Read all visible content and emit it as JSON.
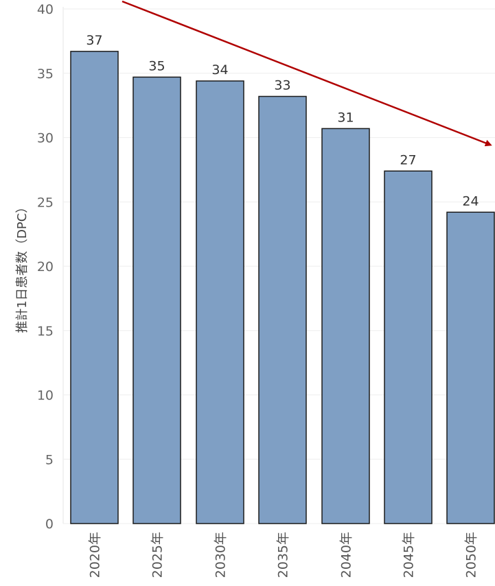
{
  "chart_data": {
    "type": "bar",
    "categories": [
      "2020年",
      "2025年",
      "2030年",
      "2035年",
      "2040年",
      "2045年",
      "2050年"
    ],
    "values": [
      36.7,
      34.7,
      34.4,
      33.2,
      30.7,
      27.4,
      24.2
    ],
    "data_labels": [
      "37",
      "35",
      "34",
      "33",
      "31",
      "27",
      "24"
    ],
    "ylabel": "推計1日患者数（DPC）",
    "ylim": [
      0,
      40
    ],
    "yticks": [
      0,
      5,
      10,
      15,
      20,
      25,
      30,
      35,
      40
    ],
    "grid": true,
    "colors": {
      "bar_fill": "#7f9fc4",
      "bar_stroke": "#1a1a1a",
      "arrow": "#b00000",
      "grid": "#eeeeee"
    },
    "annotations": [
      {
        "type": "trend-arrow",
        "direction": "down-right",
        "color": "#b00000"
      }
    ]
  }
}
